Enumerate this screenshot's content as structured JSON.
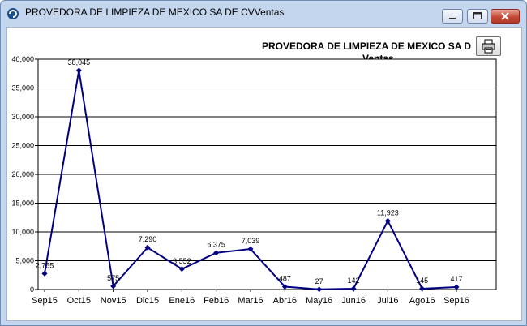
{
  "window": {
    "title": "PROVEDORA DE LIMPIEZA DE MEXICO SA DE CVVentas",
    "controls": {
      "minimize": "minimize",
      "maximize": "maximize",
      "close": "close"
    }
  },
  "toolbar": {
    "print_icon": "printer-icon"
  },
  "chart_data": {
    "type": "line",
    "title": "PROVEDORA DE LIMPIEZA DE MEXICO SA D",
    "subtitle": "Ventas",
    "categories": [
      "Sep15",
      "Oct15",
      "Nov15",
      "Dic15",
      "Ene16",
      "Feb16",
      "Mar16",
      "Abr16",
      "May16",
      "Jun16",
      "Jul16",
      "Ago16",
      "Sep16"
    ],
    "values": [
      2765,
      38045,
      575,
      7290,
      3552,
      6375,
      7039,
      487,
      27,
      142,
      11923,
      145,
      417
    ],
    "data_labels": [
      "2,765",
      "38,045",
      "575",
      "7,290",
      "3,552",
      "6,375",
      "7,039",
      "487",
      "27",
      "142",
      "11,923",
      "145",
      "417"
    ],
    "yticks": [
      "0",
      "5,000",
      "10,000",
      "15,000",
      "20,000",
      "25,000",
      "30,000",
      "35,000",
      "40,000"
    ],
    "ylim": [
      0,
      40000
    ],
    "grid": true,
    "legend": "none",
    "colors": {
      "line": "#000080",
      "grid": "#000000"
    }
  }
}
